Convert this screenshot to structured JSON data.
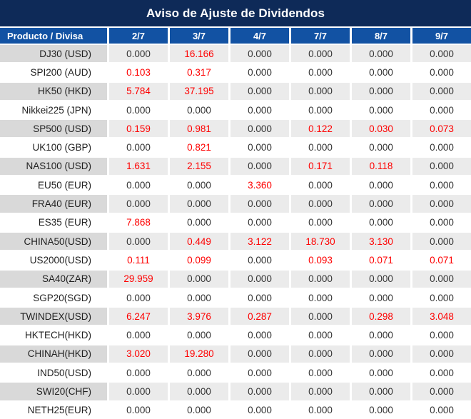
{
  "title": "Aviso de Ajuste de Dividendos",
  "table": {
    "product_header": "Producto / Divisa",
    "date_headers": [
      "2/7",
      "3/7",
      "4/7",
      "7/7",
      "8/7",
      "9/7"
    ],
    "rows": [
      {
        "product": "DJ30 (USD)",
        "values": [
          "0.000",
          "16.166",
          "0.000",
          "0.000",
          "0.000",
          "0.000"
        ]
      },
      {
        "product": "SPI200 (AUD)",
        "values": [
          "0.103",
          "0.317",
          "0.000",
          "0.000",
          "0.000",
          "0.000"
        ]
      },
      {
        "product": "HK50 (HKD)",
        "values": [
          "5.784",
          "37.195",
          "0.000",
          "0.000",
          "0.000",
          "0.000"
        ]
      },
      {
        "product": "Nikkei225 (JPN)",
        "values": [
          "0.000",
          "0.000",
          "0.000",
          "0.000",
          "0.000",
          "0.000"
        ]
      },
      {
        "product": "SP500 (USD)",
        "values": [
          "0.159",
          "0.981",
          "0.000",
          "0.122",
          "0.030",
          "0.073"
        ]
      },
      {
        "product": "UK100 (GBP)",
        "values": [
          "0.000",
          "0.821",
          "0.000",
          "0.000",
          "0.000",
          "0.000"
        ]
      },
      {
        "product": "NAS100 (USD)",
        "values": [
          "1.631",
          "2.155",
          "0.000",
          "0.171",
          "0.118",
          "0.000"
        ]
      },
      {
        "product": "EU50 (EUR)",
        "values": [
          "0.000",
          "0.000",
          "3.360",
          "0.000",
          "0.000",
          "0.000"
        ]
      },
      {
        "product": "FRA40 (EUR)",
        "values": [
          "0.000",
          "0.000",
          "0.000",
          "0.000",
          "0.000",
          "0.000"
        ]
      },
      {
        "product": "ES35 (EUR)",
        "values": [
          "7.868",
          "0.000",
          "0.000",
          "0.000",
          "0.000",
          "0.000"
        ]
      },
      {
        "product": "CHINA50(USD)",
        "values": [
          "0.000",
          "0.449",
          "3.122",
          "18.730",
          "3.130",
          "0.000"
        ]
      },
      {
        "product": "US2000(USD)",
        "values": [
          "0.111",
          "0.099",
          "0.000",
          "0.093",
          "0.071",
          "0.071"
        ]
      },
      {
        "product": "SA40(ZAR)",
        "values": [
          "29.959",
          "0.000",
          "0.000",
          "0.000",
          "0.000",
          "0.000"
        ]
      },
      {
        "product": "SGP20(SGD)",
        "values": [
          "0.000",
          "0.000",
          "0.000",
          "0.000",
          "0.000",
          "0.000"
        ]
      },
      {
        "product": "TWINDEX(USD)",
        "values": [
          "6.247",
          "3.976",
          "0.287",
          "0.000",
          "0.298",
          "3.048"
        ]
      },
      {
        "product": "HKTECH(HKD)",
        "values": [
          "0.000",
          "0.000",
          "0.000",
          "0.000",
          "0.000",
          "0.000"
        ]
      },
      {
        "product": "CHINAH(HKD)",
        "values": [
          "3.020",
          "19.280",
          "0.000",
          "0.000",
          "0.000",
          "0.000"
        ]
      },
      {
        "product": "IND50(USD)",
        "values": [
          "0.000",
          "0.000",
          "0.000",
          "0.000",
          "0.000",
          "0.000"
        ]
      },
      {
        "product": "SWI20(CHF)",
        "values": [
          "0.000",
          "0.000",
          "0.000",
          "0.000",
          "0.000",
          "0.000"
        ]
      },
      {
        "product": "NETH25(EUR)",
        "values": [
          "0.000",
          "0.000",
          "0.000",
          "0.000",
          "0.000",
          "0.000"
        ]
      }
    ]
  },
  "colors": {
    "title_bg": "#0e2a58",
    "header_bg": "#1252a3",
    "row_gray": "#ebebeb",
    "row_gray_first_col": "#d9d9d9",
    "row_white": "#ffffff",
    "value_text": "#333333",
    "nonzero_value_text": "#fe0000",
    "header_text": "#ffffff"
  }
}
